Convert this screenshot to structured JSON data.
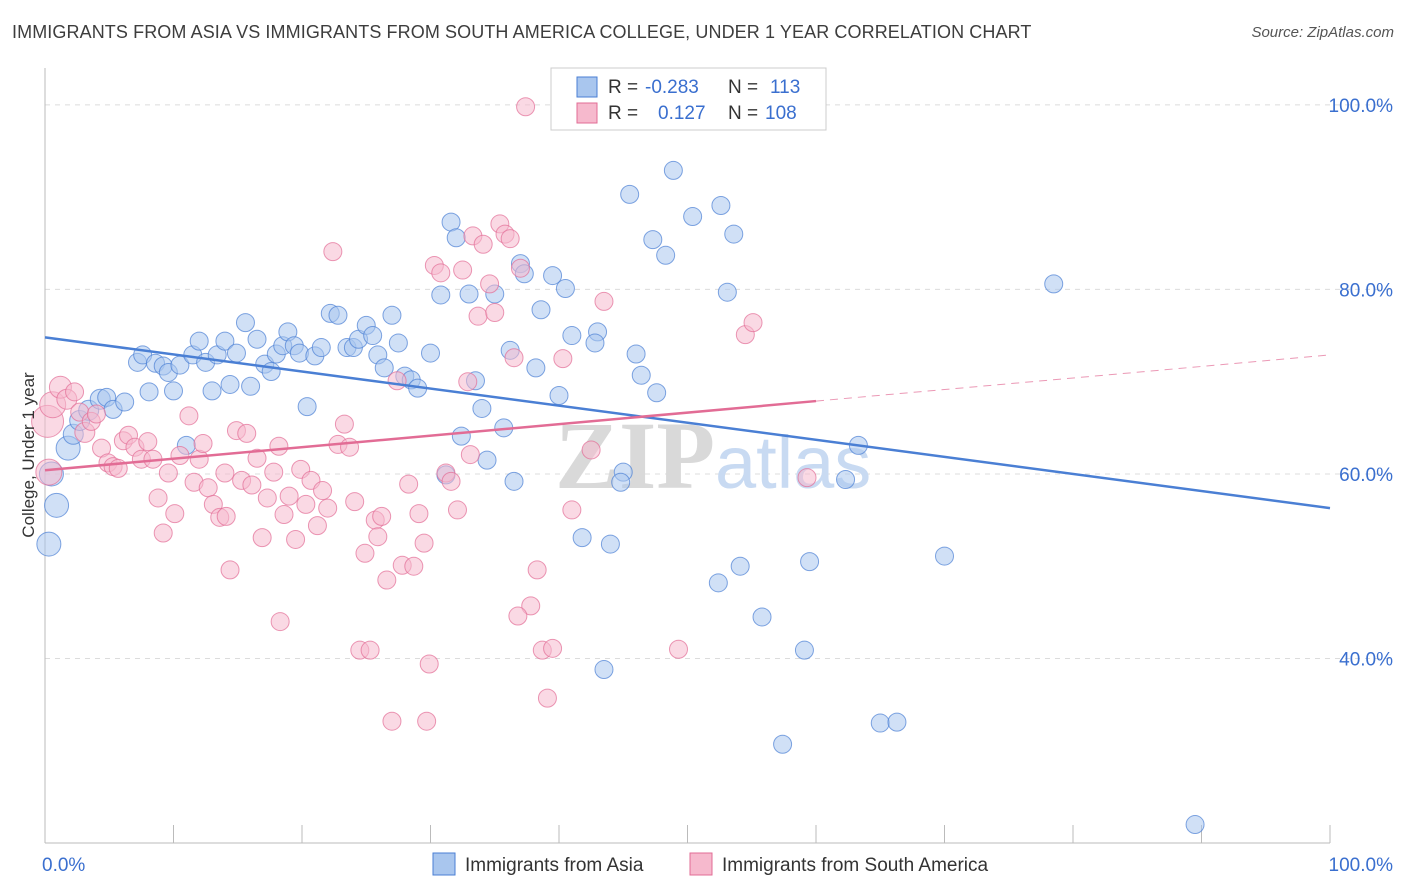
{
  "title": "IMMIGRANTS FROM ASIA VS IMMIGRANTS FROM SOUTH AMERICA COLLEGE, UNDER 1 YEAR CORRELATION CHART",
  "source": "Source: ZipAtlas.com",
  "watermark": {
    "zip": "ZIP",
    "atlas": "atlas"
  },
  "stats": {
    "r_label": "R =",
    "n_label": "N =",
    "rows": [
      {
        "r": "-0.283",
        "n": "113",
        "color": "#4a7fd4",
        "fill": "#a9c6ee"
      },
      {
        "r": "0.127",
        "n": "108",
        "color": "#e26c95",
        "fill": "#f6b9cd"
      }
    ]
  },
  "legend": [
    {
      "label": "Immigrants from Asia",
      "fill": "#a9c6ee",
      "stroke": "#4a7fd4"
    },
    {
      "label": "Immigrants from South America",
      "fill": "#f6b9cd",
      "stroke": "#e26c95"
    }
  ],
  "chart_data": {
    "type": "scatter",
    "xlabel": "",
    "ylabel": "College, Under 1 year",
    "xlim": [
      0,
      100
    ],
    "ylim": [
      20,
      104
    ],
    "x_tick_labels": [
      "0.0%",
      "100.0%"
    ],
    "y_tick_labels": [
      "40.0%",
      "60.0%",
      "80.0%",
      "100.0%"
    ],
    "y_ticks": [
      40,
      60,
      80,
      100
    ],
    "grid": "horizontal dashed",
    "legend_position": "bottom-center",
    "series": [
      {
        "name": "Immigrants from Asia",
        "color": "#4a7fd4",
        "fill": "#a9c6ee",
        "trend": {
          "x": [
            0,
            100
          ],
          "y": [
            74.8,
            56.3
          ],
          "solid_to": 100
        },
        "points": [
          [
            0.3,
            52.4,
            12
          ],
          [
            0.5,
            60,
            12
          ],
          [
            0.9,
            56.6,
            12
          ],
          [
            1.8,
            62.8,
            12
          ],
          [
            2.2,
            64.3,
            10
          ],
          [
            2.7,
            65.8,
            10
          ],
          [
            3.4,
            66.9,
            10
          ],
          [
            4.3,
            68.1,
            10
          ],
          [
            4.8,
            68.3,
            9
          ],
          [
            5.3,
            67,
            9
          ],
          [
            6.2,
            67.8,
            9
          ],
          [
            7.2,
            72.1,
            9
          ],
          [
            7.6,
            72.9,
            9
          ],
          [
            8.1,
            68.9,
            9
          ],
          [
            8.6,
            72,
            9
          ],
          [
            9.2,
            71.7,
            9
          ],
          [
            9.6,
            71,
            9
          ],
          [
            10,
            69,
            9
          ],
          [
            10.5,
            71.8,
            9
          ],
          [
            11,
            63.1,
            9
          ],
          [
            11.5,
            72.9,
            9
          ],
          [
            12,
            74.4,
            9
          ],
          [
            12.5,
            72.1,
            9
          ],
          [
            13,
            69,
            9
          ],
          [
            13.4,
            72.9,
            9
          ],
          [
            14,
            74.4,
            9
          ],
          [
            14.4,
            69.7,
            9
          ],
          [
            14.9,
            73.1,
            9
          ],
          [
            15.6,
            76.4,
            9
          ],
          [
            16,
            69.5,
            9
          ],
          [
            16.5,
            74.6,
            9
          ],
          [
            17.1,
            71.9,
            9
          ],
          [
            17.6,
            71.1,
            9
          ],
          [
            18,
            73,
            9
          ],
          [
            18.5,
            73.9,
            9
          ],
          [
            18.9,
            75.4,
            9
          ],
          [
            19.4,
            73.9,
            9
          ],
          [
            19.8,
            73.1,
            9
          ],
          [
            20.4,
            67.3,
            9
          ],
          [
            21,
            72.8,
            9
          ],
          [
            21.5,
            73.7,
            9
          ],
          [
            22.2,
            77.4,
            9
          ],
          [
            22.8,
            77.2,
            9
          ],
          [
            23.5,
            73.7,
            9
          ],
          [
            24,
            73.7,
            9
          ],
          [
            24.4,
            74.6,
            9
          ],
          [
            25,
            76.1,
            9
          ],
          [
            25.5,
            75,
            9
          ],
          [
            25.9,
            72.9,
            9
          ],
          [
            26.4,
            71.5,
            9
          ],
          [
            27,
            77.2,
            9
          ],
          [
            27.5,
            74.2,
            9
          ],
          [
            28,
            70.6,
            9
          ],
          [
            28.5,
            70.2,
            9
          ],
          [
            29,
            69.3,
            9
          ],
          [
            30,
            73.1,
            9
          ],
          [
            30.8,
            79.4,
            9
          ],
          [
            31.2,
            59.9,
            9
          ],
          [
            31.6,
            87.3,
            9
          ],
          [
            32,
            85.6,
            9
          ],
          [
            32.4,
            64.1,
            9
          ],
          [
            33,
            79.5,
            9
          ],
          [
            33.5,
            70.1,
            9
          ],
          [
            34,
            67.1,
            9
          ],
          [
            34.4,
            61.5,
            9
          ],
          [
            35,
            79.5,
            9
          ],
          [
            35.7,
            65,
            9
          ],
          [
            36.2,
            73.4,
            9
          ],
          [
            36.5,
            59.2,
            9
          ],
          [
            37,
            82.8,
            9
          ],
          [
            37.3,
            81.7,
            9
          ],
          [
            38.2,
            71.5,
            9
          ],
          [
            38.6,
            77.8,
            9
          ],
          [
            39.5,
            81.5,
            9
          ],
          [
            40,
            68.5,
            9
          ],
          [
            40.5,
            80.1,
            9
          ],
          [
            41,
            75,
            9
          ],
          [
            41.8,
            53.1,
            9
          ],
          [
            43,
            75.4,
            9
          ],
          [
            42.8,
            74.2,
            9
          ],
          [
            43.5,
            38.8,
            9
          ],
          [
            44,
            52.4,
            9
          ],
          [
            45,
            60.2,
            9
          ],
          [
            44.8,
            59.1,
            9
          ],
          [
            45.5,
            90.3,
            9
          ],
          [
            46,
            73,
            9
          ],
          [
            46.4,
            70.7,
            9
          ],
          [
            47.3,
            85.4,
            9
          ],
          [
            47.6,
            68.8,
            9
          ],
          [
            48.3,
            83.7,
            9
          ],
          [
            48.9,
            92.9,
            9
          ],
          [
            50.4,
            87.9,
            9
          ],
          [
            52.4,
            48.2,
            9
          ],
          [
            52.6,
            89.1,
            9
          ],
          [
            53.1,
            79.7,
            9
          ],
          [
            53.6,
            86,
            9
          ],
          [
            54.1,
            50,
            9
          ],
          [
            55.8,
            44.5,
            9
          ],
          [
            57.4,
            30.7,
            9
          ],
          [
            59.1,
            40.9,
            9
          ],
          [
            59.5,
            50.5,
            9
          ],
          [
            62.3,
            59.4,
            9
          ],
          [
            63.3,
            63.1,
            9
          ],
          [
            65,
            33,
            9
          ],
          [
            66.3,
            33.1,
            9
          ],
          [
            70,
            51.1,
            9
          ],
          [
            78.5,
            80.6,
            9
          ],
          [
            89.5,
            22,
            9
          ]
        ]
      },
      {
        "name": "Immigrants from South America",
        "color": "#e26c95",
        "fill": "#f6b9cd",
        "trend": {
          "x": [
            0,
            100
          ],
          "y": [
            60.4,
            72.9
          ],
          "solid_to": 60
        },
        "points": [
          [
            0.2,
            65.7,
            16
          ],
          [
            0.3,
            60.2,
            13
          ],
          [
            0.6,
            67.5,
            13
          ],
          [
            1.2,
            69.4,
            11
          ],
          [
            1.7,
            68.1,
            10
          ],
          [
            2.3,
            68.9,
            9
          ],
          [
            2.7,
            66.7,
            9
          ],
          [
            3.1,
            64.5,
            10
          ],
          [
            3.6,
            65.7,
            9
          ],
          [
            4,
            66.5,
            9
          ],
          [
            4.4,
            62.8,
            9
          ],
          [
            4.9,
            61.2,
            9
          ],
          [
            5.3,
            60.8,
            9
          ],
          [
            5.7,
            60.6,
            9
          ],
          [
            6.1,
            63.6,
            9
          ],
          [
            6.5,
            64.2,
            9
          ],
          [
            7,
            62.9,
            9
          ],
          [
            7.5,
            61.6,
            9
          ],
          [
            8,
            63.5,
            9
          ],
          [
            8.4,
            61.6,
            9
          ],
          [
            8.8,
            57.4,
            9
          ],
          [
            9.2,
            53.6,
            9
          ],
          [
            9.6,
            60.1,
            9
          ],
          [
            10.1,
            55.7,
            9
          ],
          [
            10.5,
            62,
            9
          ],
          [
            11.2,
            66.3,
            9
          ],
          [
            11.6,
            59.1,
            9
          ],
          [
            12,
            61.6,
            9
          ],
          [
            12.3,
            63.3,
            9
          ],
          [
            12.7,
            58.5,
            9
          ],
          [
            13.1,
            56.7,
            9
          ],
          [
            13.6,
            55.3,
            9
          ],
          [
            14,
            60.1,
            9
          ],
          [
            14.4,
            49.6,
            9
          ],
          [
            14.9,
            64.7,
            9
          ],
          [
            15.3,
            59.3,
            9
          ],
          [
            15.7,
            64.4,
            9
          ],
          [
            16.1,
            58.8,
            9
          ],
          [
            16.5,
            61.7,
            9
          ],
          [
            16.9,
            53.1,
            9
          ],
          [
            17.3,
            57.4,
            9
          ],
          [
            17.8,
            60.2,
            9
          ],
          [
            18.2,
            63,
            9
          ],
          [
            18.6,
            55.6,
            9
          ],
          [
            19,
            57.6,
            9
          ],
          [
            19.5,
            52.9,
            9
          ],
          [
            19.9,
            60.5,
            9
          ],
          [
            20.3,
            56.7,
            9
          ],
          [
            20.7,
            59.3,
            9
          ],
          [
            21.2,
            54.4,
            9
          ],
          [
            21.6,
            58.2,
            9
          ],
          [
            22,
            56.3,
            9
          ],
          [
            22.4,
            84.1,
            9
          ],
          [
            22.8,
            63.2,
            9
          ],
          [
            23.3,
            65.4,
            9
          ],
          [
            23.7,
            62.9,
            9
          ],
          [
            24.1,
            57,
            9
          ],
          [
            24.5,
            40.9,
            9
          ],
          [
            24.9,
            51.4,
            9
          ],
          [
            25.3,
            40.9,
            9
          ],
          [
            25.7,
            55,
            9
          ],
          [
            26.2,
            55.4,
            9
          ],
          [
            26.6,
            48.5,
            9
          ],
          [
            27,
            33.2,
            9
          ],
          [
            27.4,
            70.1,
            9
          ],
          [
            27.8,
            50.1,
            9
          ],
          [
            28.3,
            58.9,
            9
          ],
          [
            28.7,
            50,
            9
          ],
          [
            29.1,
            55.7,
            9
          ],
          [
            29.5,
            52.5,
            9
          ],
          [
            29.9,
            39.4,
            9
          ],
          [
            30.3,
            82.6,
            9
          ],
          [
            30.8,
            81.8,
            9
          ],
          [
            31.2,
            60.1,
            9
          ],
          [
            31.6,
            59.2,
            9
          ],
          [
            32.1,
            56.1,
            9
          ],
          [
            32.5,
            82.1,
            9
          ],
          [
            32.9,
            70,
            9
          ],
          [
            33.3,
            85.8,
            9
          ],
          [
            33.7,
            77.1,
            9
          ],
          [
            34.1,
            84.9,
            9
          ],
          [
            34.6,
            80.6,
            9
          ],
          [
            35,
            77.5,
            9
          ],
          [
            35.4,
            87.1,
            9
          ],
          [
            35.8,
            86,
            9
          ],
          [
            36.2,
            85.5,
            9
          ],
          [
            36.5,
            72.6,
            9
          ],
          [
            37,
            82.3,
            9
          ],
          [
            37.4,
            99.8,
            9
          ],
          [
            37.8,
            45.7,
            9
          ],
          [
            38.3,
            49.6,
            9
          ],
          [
            38.7,
            40.9,
            9
          ],
          [
            39.1,
            35.7,
            9
          ],
          [
            39.5,
            41.1,
            9
          ],
          [
            40.3,
            72.5,
            9
          ],
          [
            41,
            56.1,
            9
          ],
          [
            43.5,
            78.7,
            9
          ],
          [
            54.5,
            75.1,
            9
          ],
          [
            55.1,
            76.4,
            9
          ],
          [
            59.3,
            59.6,
            9
          ],
          [
            49.3,
            41,
            9
          ],
          [
            18.3,
            44,
            9
          ],
          [
            14.1,
            55.4,
            9
          ],
          [
            29.7,
            33.2,
            9
          ],
          [
            25.9,
            53.2,
            9
          ],
          [
            36.8,
            44.6,
            9
          ],
          [
            33.1,
            62.1,
            9
          ],
          [
            42.5,
            62.6,
            9
          ]
        ]
      }
    ]
  }
}
